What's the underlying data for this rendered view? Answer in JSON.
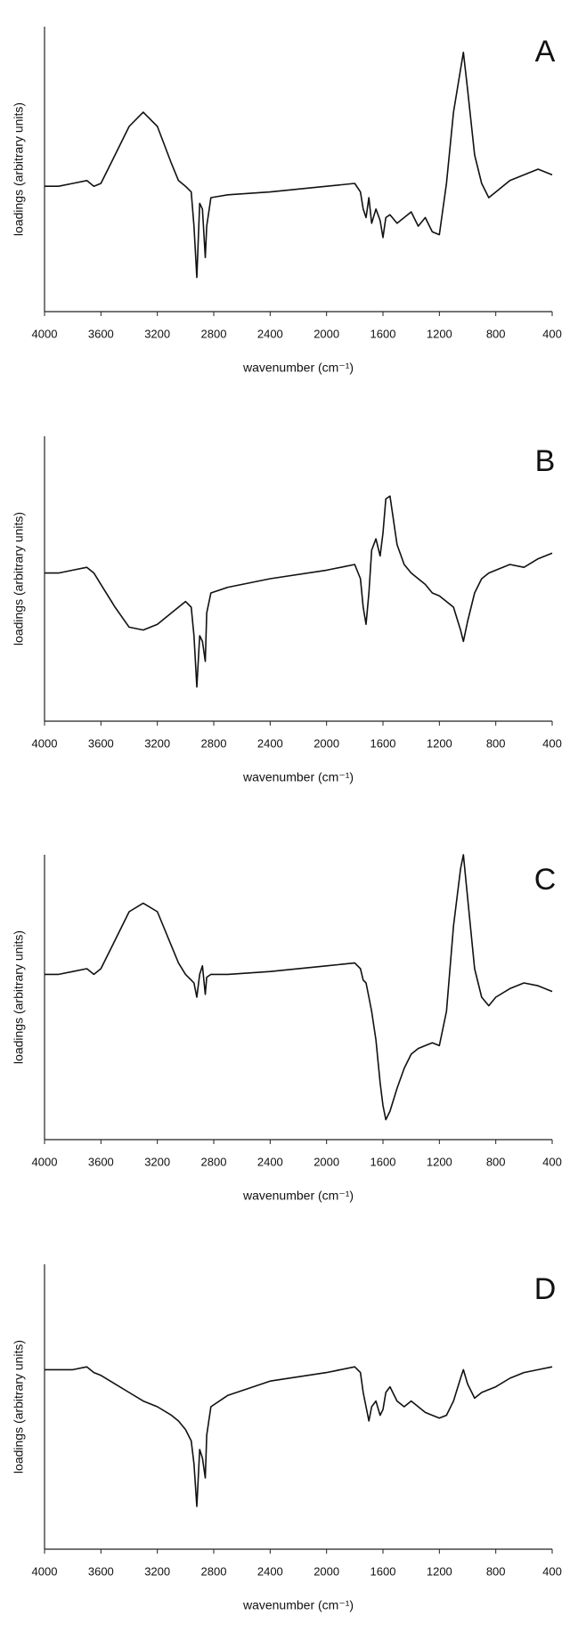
{
  "chart_data": [
    {
      "type": "line",
      "label": "A",
      "ylabel": "loadings (arbitrary units)",
      "xlabel": "wavenumber (cm⁻¹)",
      "color": "#111111",
      "xlim": [
        4000,
        400
      ],
      "ylim": [
        0,
        100
      ],
      "xticks": [
        4000,
        3600,
        3200,
        2800,
        2400,
        2000,
        1600,
        1200,
        800,
        400
      ],
      "x": [
        4000,
        3900,
        3800,
        3700,
        3650,
        3600,
        3500,
        3400,
        3300,
        3200,
        3100,
        3050,
        3000,
        2960,
        2940,
        2920,
        2900,
        2880,
        2860,
        2850,
        2820,
        2700,
        2400,
        2000,
        1800,
        1760,
        1740,
        1720,
        1700,
        1680,
        1650,
        1620,
        1600,
        1580,
        1550,
        1500,
        1450,
        1400,
        1350,
        1300,
        1250,
        1200,
        1150,
        1100,
        1050,
        1030,
        1000,
        950,
        900,
        850,
        800,
        700,
        600,
        500,
        400
      ],
      "values": [
        44,
        44,
        45,
        46,
        44,
        45,
        55,
        65,
        70,
        65,
        52,
        46,
        44,
        42,
        30,
        12,
        38,
        36,
        19,
        30,
        40,
        41,
        42,
        44,
        45,
        42,
        36,
        33,
        40,
        31,
        36,
        32,
        26,
        33,
        34,
        31,
        33,
        35,
        30,
        33,
        28,
        27,
        45,
        70,
        85,
        91,
        78,
        55,
        45,
        40,
        42,
        46,
        48,
        50,
        48
      ]
    },
    {
      "type": "line",
      "label": "B",
      "ylabel": "loadings (arbitrary units)",
      "xlabel": "wavenumber (cm⁻¹)",
      "color": "#111111",
      "xlim": [
        4000,
        400
      ],
      "ylim": [
        0,
        100
      ],
      "xticks": [
        4000,
        3600,
        3200,
        2800,
        2400,
        2000,
        1600,
        1200,
        800,
        400
      ],
      "x": [
        4000,
        3900,
        3800,
        3700,
        3650,
        3600,
        3500,
        3400,
        3300,
        3200,
        3100,
        3050,
        3000,
        2960,
        2940,
        2920,
        2900,
        2880,
        2860,
        2850,
        2820,
        2700,
        2400,
        2000,
        1800,
        1760,
        1740,
        1720,
        1700,
        1680,
        1650,
        1620,
        1600,
        1580,
        1550,
        1500,
        1450,
        1400,
        1350,
        1300,
        1250,
        1200,
        1150,
        1100,
        1050,
        1030,
        1000,
        950,
        900,
        850,
        800,
        700,
        600,
        500,
        400
      ],
      "values": [
        52,
        52,
        53,
        54,
        52,
        48,
        40,
        33,
        32,
        34,
        38,
        40,
        42,
        40,
        30,
        12,
        30,
        28,
        21,
        38,
        45,
        47,
        50,
        53,
        55,
        50,
        40,
        34,
        45,
        60,
        64,
        58,
        66,
        78,
        79,
        62,
        55,
        52,
        50,
        48,
        45,
        44,
        42,
        40,
        32,
        28,
        35,
        45,
        50,
        52,
        53,
        55,
        54,
        57,
        59
      ]
    },
    {
      "type": "line",
      "label": "C",
      "ylabel": "loadings (arbitrary units)",
      "xlabel": "wavenumber (cm⁻¹)",
      "color": "#111111",
      "xlim": [
        4000,
        400
      ],
      "ylim": [
        0,
        100
      ],
      "xticks": [
        4000,
        3600,
        3200,
        2800,
        2400,
        2000,
        1600,
        1200,
        800,
        400
      ],
      "x": [
        4000,
        3900,
        3800,
        3700,
        3650,
        3600,
        3500,
        3400,
        3300,
        3200,
        3100,
        3050,
        3000,
        2960,
        2940,
        2920,
        2900,
        2880,
        2860,
        2850,
        2820,
        2700,
        2400,
        2000,
        1800,
        1760,
        1740,
        1720,
        1700,
        1680,
        1650,
        1620,
        1600,
        1580,
        1550,
        1500,
        1450,
        1400,
        1350,
        1300,
        1250,
        1200,
        1150,
        1100,
        1050,
        1030,
        1000,
        950,
        900,
        850,
        800,
        700,
        600,
        500,
        400
      ],
      "values": [
        58,
        58,
        59,
        60,
        58,
        60,
        70,
        80,
        83,
        80,
        68,
        62,
        58,
        56,
        55,
        50,
        58,
        61,
        51,
        57,
        58,
        58,
        59,
        61,
        62,
        60,
        56,
        55,
        50,
        45,
        35,
        20,
        12,
        7,
        10,
        18,
        25,
        30,
        32,
        33,
        34,
        33,
        45,
        75,
        95,
        100,
        85,
        60,
        50,
        47,
        50,
        53,
        55,
        54,
        52
      ]
    },
    {
      "type": "line",
      "label": "D",
      "ylabel": "loadings (arbitrary units)",
      "xlabel": "wavenumber (cm⁻¹)",
      "color": "#111111",
      "xlim": [
        4000,
        400
      ],
      "ylim": [
        0,
        100
      ],
      "xticks": [
        4000,
        3600,
        3200,
        2800,
        2400,
        2000,
        1600,
        1200,
        800,
        400
      ],
      "x": [
        4000,
        3900,
        3800,
        3700,
        3650,
        3600,
        3500,
        3400,
        3300,
        3200,
        3100,
        3050,
        3000,
        2960,
        2940,
        2920,
        2900,
        2880,
        2860,
        2850,
        2820,
        2700,
        2400,
        2000,
        1800,
        1760,
        1740,
        1720,
        1700,
        1680,
        1650,
        1620,
        1600,
        1580,
        1550,
        1500,
        1450,
        1400,
        1350,
        1300,
        1250,
        1200,
        1150,
        1100,
        1050,
        1030,
        1000,
        950,
        900,
        850,
        800,
        700,
        600,
        500,
        400
      ],
      "values": [
        63,
        63,
        63,
        64,
        62,
        61,
        58,
        55,
        52,
        50,
        47,
        45,
        42,
        38,
        30,
        15,
        35,
        32,
        25,
        40,
        50,
        54,
        59,
        62,
        64,
        62,
        55,
        50,
        45,
        50,
        52,
        47,
        49,
        55,
        57,
        52,
        50,
        52,
        50,
        48,
        47,
        46,
        47,
        52,
        60,
        63,
        58,
        53,
        55,
        56,
        57,
        60,
        62,
        63,
        64
      ]
    }
  ]
}
